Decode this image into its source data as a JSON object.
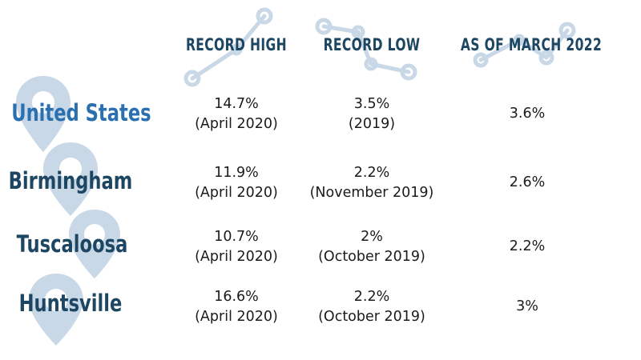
{
  "columns": [
    "RECORD HIGH",
    "RECORD LOW",
    "AS OF MARCH 2022"
  ],
  "rows": [
    {
      "location": "United States",
      "record_high": {
        "value": "14.7%",
        "date": "(April 2020)"
      },
      "record_low": {
        "value": "3.5%",
        "date": "(2019)"
      },
      "as_of_march_2022": "3.6%"
    },
    {
      "location": "Birmingham",
      "record_high": {
        "value": "11.9%",
        "date": "(April 2020)"
      },
      "record_low": {
        "value": "2.2%",
        "date": "(November 2019)"
      },
      "as_of_march_2022": "2.6%"
    },
    {
      "location": "Tuscaloosa",
      "record_high": {
        "value": "10.7%",
        "date": "(April 2020)"
      },
      "record_low": {
        "value": "2%",
        "date": "(October 2019)"
      },
      "as_of_march_2022": "2.2%"
    },
    {
      "location": "Huntsville",
      "record_high": {
        "value": "16.6%",
        "date": "(April 2020)"
      },
      "record_low": {
        "value": "2.2%",
        "date": "(October 2019)"
      },
      "as_of_march_2022": "3%"
    }
  ],
  "colors": {
    "heading": "#1d4663",
    "highlight_location": "#2a6fb0",
    "decoration": "#c9d8e6",
    "text": "#1b1b1b"
  },
  "decorations": [
    "map-pin-icon",
    "connected-nodes-icon"
  ]
}
